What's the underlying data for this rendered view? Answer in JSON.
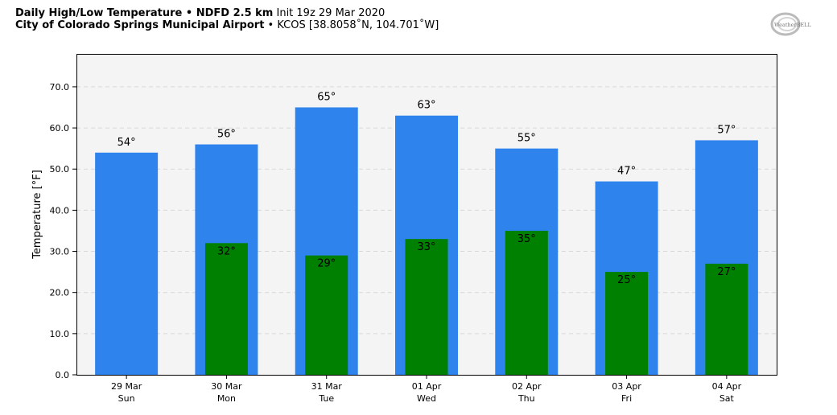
{
  "header": {
    "line1_bold": "Daily High/Low Temperature • NDFD 2.5 km",
    "line1_rest": " Init 19z 29 Mar 2020",
    "line2_bold": "City of Colorado Springs Municipal Airport",
    "line2_rest": " • KCOS [38.8058˚N, 104.701˚W]"
  },
  "logo": {
    "icon": "weatherbell-logo",
    "text": "WeatherBELL"
  },
  "colors": {
    "high": "#2e83ed",
    "low": "#008000",
    "plot_bg": "#f4f4f4"
  },
  "chart_data": {
    "type": "bar",
    "title": "Daily High/Low Temperature • NDFD 2.5 km",
    "xlabel": "",
    "ylabel": "Temperature [°F]",
    "ylim": [
      0,
      78
    ],
    "yticks": [
      "0.0",
      "10.0",
      "20.0",
      "30.0",
      "40.0",
      "50.0",
      "60.0",
      "70.0"
    ],
    "grid": "horizontal-dashed",
    "categories": [
      {
        "date": "29 Mar",
        "day": "Sun"
      },
      {
        "date": "30 Mar",
        "day": "Mon"
      },
      {
        "date": "31 Mar",
        "day": "Tue"
      },
      {
        "date": "01 Apr",
        "day": "Wed"
      },
      {
        "date": "02 Apr",
        "day": "Thu"
      },
      {
        "date": "03 Apr",
        "day": "Fri"
      },
      {
        "date": "04 Apr",
        "day": "Sat"
      }
    ],
    "series": [
      {
        "key": "high",
        "values": [
          54,
          56,
          65,
          63,
          55,
          47,
          57
        ],
        "labels": [
          "54°",
          "56°",
          "65°",
          "63°",
          "55°",
          "47°",
          "57°"
        ]
      },
      {
        "key": "low",
        "values": [
          null,
          32,
          29,
          33,
          35,
          25,
          27
        ],
        "labels": [
          "",
          "32°",
          "29°",
          "33°",
          "35°",
          "25°",
          "27°"
        ]
      }
    ]
  }
}
